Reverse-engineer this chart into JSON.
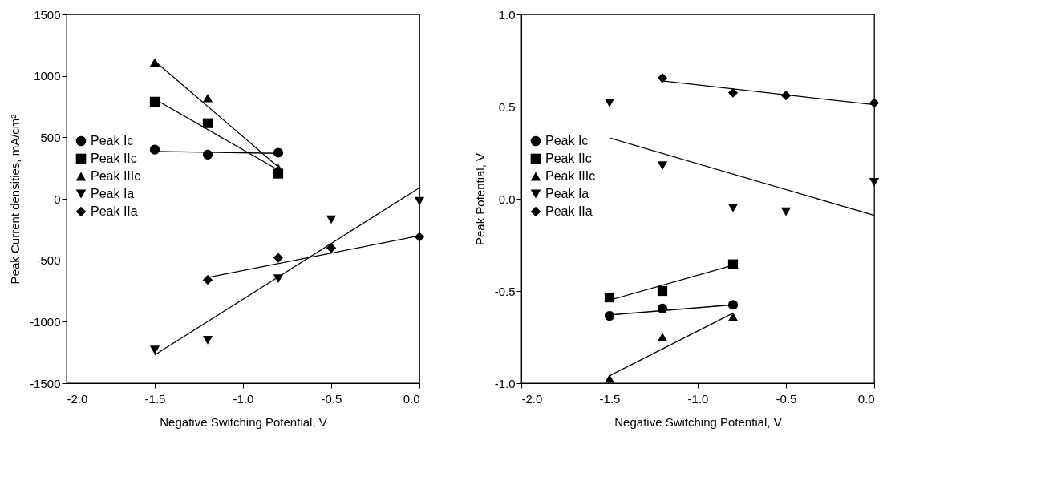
{
  "chart_data": [
    {
      "type": "scatter",
      "xlabel": "Negative Switching Potential, V",
      "ylabel": "Peak Current densities, mA/cm²",
      "xlim": [
        -2.0,
        0.0
      ],
      "ylim": [
        -1500,
        1500
      ],
      "xticks": [
        {
          "value": -2.0,
          "label": "-2.0"
        },
        {
          "value": -1.5,
          "label": "-1.5"
        },
        {
          "value": -1.0,
          "label": "-1.0"
        },
        {
          "value": -0.5,
          "label": "-0.5"
        },
        {
          "value": 0,
          "label": "0.0"
        }
      ],
      "yticks": [
        -1500,
        -1000,
        -500,
        0,
        500,
        1000,
        1500
      ],
      "grid": false,
      "legend": "left",
      "series": [
        {
          "name": "Peak Ic",
          "marker": "circle",
          "color": "#000000",
          "x": [
            -1.5,
            -1.2,
            -0.8
          ],
          "values": [
            400,
            360,
            375
          ]
        },
        {
          "name": "Peak IIc",
          "marker": "square",
          "color": "#000000",
          "x": [
            -1.5,
            -1.2,
            -0.8
          ],
          "values": [
            790,
            615,
            205
          ]
        },
        {
          "name": "Peak IIIc",
          "marker": "triangle",
          "color": "#000000",
          "x": [
            -1.5,
            -1.2,
            -0.8
          ],
          "values": [
            1110,
            820,
            250
          ]
        },
        {
          "name": "Peak Ia",
          "marker": "triangle-down",
          "color": "#000000",
          "x": [
            -1.5,
            -1.2,
            -0.8,
            -0.5,
            0.0
          ],
          "values": [
            -1230,
            -1150,
            -650,
            -170,
            -20
          ]
        },
        {
          "name": "Peak IIa",
          "marker": "diamond",
          "color": "#000000",
          "x": [
            -1.2,
            -0.8,
            -0.5,
            0.0
          ],
          "values": [
            -660,
            -480,
            -400,
            -310
          ]
        },
        {
          "type": "line",
          "color": "#000000",
          "x": [
            -1.5,
            -0.8
          ],
          "values": [
            385,
            370
          ]
        },
        {
          "type": "line",
          "color": "#000000",
          "x": [
            -1.5,
            -0.8
          ],
          "values": [
            810,
            235
          ]
        },
        {
          "type": "line",
          "color": "#000000",
          "x": [
            -1.5,
            -0.8
          ],
          "values": [
            1120,
            260
          ]
        },
        {
          "type": "line",
          "color": "#000000",
          "x": [
            -1.5,
            0.0
          ],
          "values": [
            -1270,
            90
          ]
        },
        {
          "type": "line",
          "color": "#000000",
          "x": [
            -1.2,
            0.0
          ],
          "values": [
            -640,
            -300
          ]
        }
      ]
    },
    {
      "type": "scatter",
      "xlabel": "Negative Switching Potential, V",
      "ylabel": "Peak Potential, V",
      "xlim": [
        -2.0,
        0.0
      ],
      "ylim": [
        -1.0,
        1.0
      ],
      "xticks": [
        {
          "value": -2.0,
          "label": "-2.0"
        },
        {
          "value": -1.5,
          "label": "-1.5"
        },
        {
          "value": -1.0,
          "label": "-1.0"
        },
        {
          "value": -0.5,
          "label": "-0.5"
        },
        {
          "value": 0,
          "label": "0.0"
        }
      ],
      "yticks": [
        {
          "value": -1.0,
          "label": "-1.0"
        },
        -0.5,
        {
          "value": 0,
          "label": "0.0"
        },
        0.5,
        {
          "value": 1.0,
          "label": "1.0"
        }
      ],
      "grid": false,
      "legend": "left",
      "series": [
        {
          "name": "Peak Ic",
          "marker": "circle",
          "color": "#000000",
          "x": [
            -1.5,
            -1.2,
            -0.8
          ],
          "values": [
            -0.635,
            -0.595,
            -0.575
          ]
        },
        {
          "name": "Peak IIc",
          "marker": "square",
          "color": "#000000",
          "x": [
            -1.5,
            -1.2,
            -0.8
          ],
          "values": [
            -0.535,
            -0.5,
            -0.355
          ]
        },
        {
          "name": "Peak IIIc",
          "marker": "triangle",
          "color": "#000000",
          "x": [
            -1.5,
            -1.2,
            -0.8
          ],
          "values": [
            -0.975,
            -0.75,
            -0.64
          ]
        },
        {
          "name": "Peak Ia",
          "marker": "triangle-down",
          "color": "#000000",
          "x": [
            -1.5,
            -1.2,
            -0.8,
            -0.5,
            0.0
          ],
          "values": [
            0.52,
            0.18,
            -0.05,
            -0.07,
            0.09
          ]
        },
        {
          "name": "Peak IIa",
          "marker": "diamond",
          "color": "#000000",
          "x": [
            -1.2,
            -0.8,
            -0.5,
            0.0
          ],
          "values": [
            0.655,
            0.575,
            0.56,
            0.52
          ]
        },
        {
          "type": "line",
          "color": "#000000",
          "x": [
            -1.5,
            -0.8
          ],
          "values": [
            -0.63,
            -0.575
          ]
        },
        {
          "type": "line",
          "color": "#000000",
          "x": [
            -1.5,
            -0.8
          ],
          "values": [
            -0.55,
            -0.36
          ]
        },
        {
          "type": "line",
          "color": "#000000",
          "x": [
            -1.5,
            -0.8
          ],
          "values": [
            -0.96,
            -0.62
          ]
        },
        {
          "type": "line",
          "color": "#000000",
          "x": [
            -1.5,
            0.0
          ],
          "values": [
            0.33,
            -0.09
          ]
        },
        {
          "type": "line",
          "color": "#000000",
          "x": [
            -1.2,
            0.0
          ],
          "values": [
            0.64,
            0.51
          ]
        }
      ]
    }
  ]
}
